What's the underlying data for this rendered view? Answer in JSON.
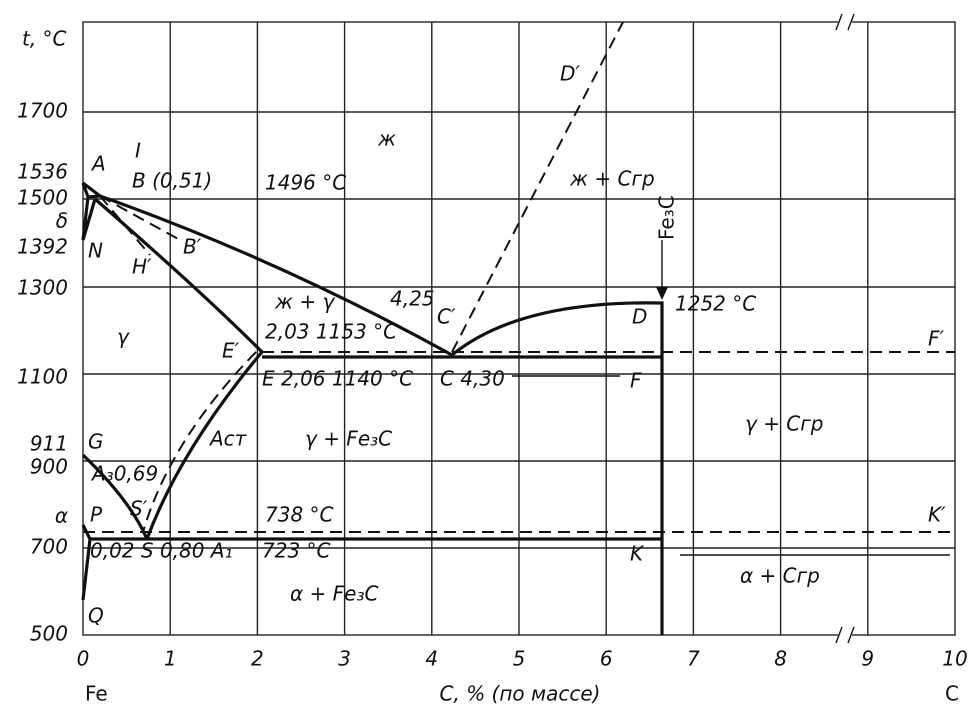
{
  "axis": {
    "y_title": "t, °C",
    "y_ticks": [
      "1700",
      "1536",
      "1500",
      "δ",
      "1392",
      "1300",
      "1100",
      "911",
      "900",
      "α",
      "700",
      "500"
    ],
    "x_ticks": [
      "0",
      "1",
      "2",
      "3",
      "4",
      "5",
      "6",
      "7",
      "8",
      "9",
      "10"
    ],
    "x_left": "Fe",
    "x_title": "C, % (по массе)",
    "x_right": "C"
  },
  "labels": [
    "A",
    "I",
    "B (0,51)",
    "1496 °C",
    "ж",
    "D′",
    "ж + Cгр",
    "N",
    "H′",
    "B′",
    "Fe₃C",
    "4,25",
    "C′",
    "D",
    "1252 °C",
    "γ",
    "ж + γ",
    "2,03 1153 °C",
    "E′",
    "E 2,06 1140 °C",
    "C 4,30",
    "F",
    "F′",
    "G",
    "Aст",
    "γ + Fe₃C",
    "γ + Cгр",
    "A₃0,69",
    "S′",
    "P",
    "738 °C",
    "K′",
    "0,02 S 0,80 A₁",
    "723 °C",
    "K",
    "α + Cгр",
    "α + Fe₃C",
    "Q"
  ]
}
